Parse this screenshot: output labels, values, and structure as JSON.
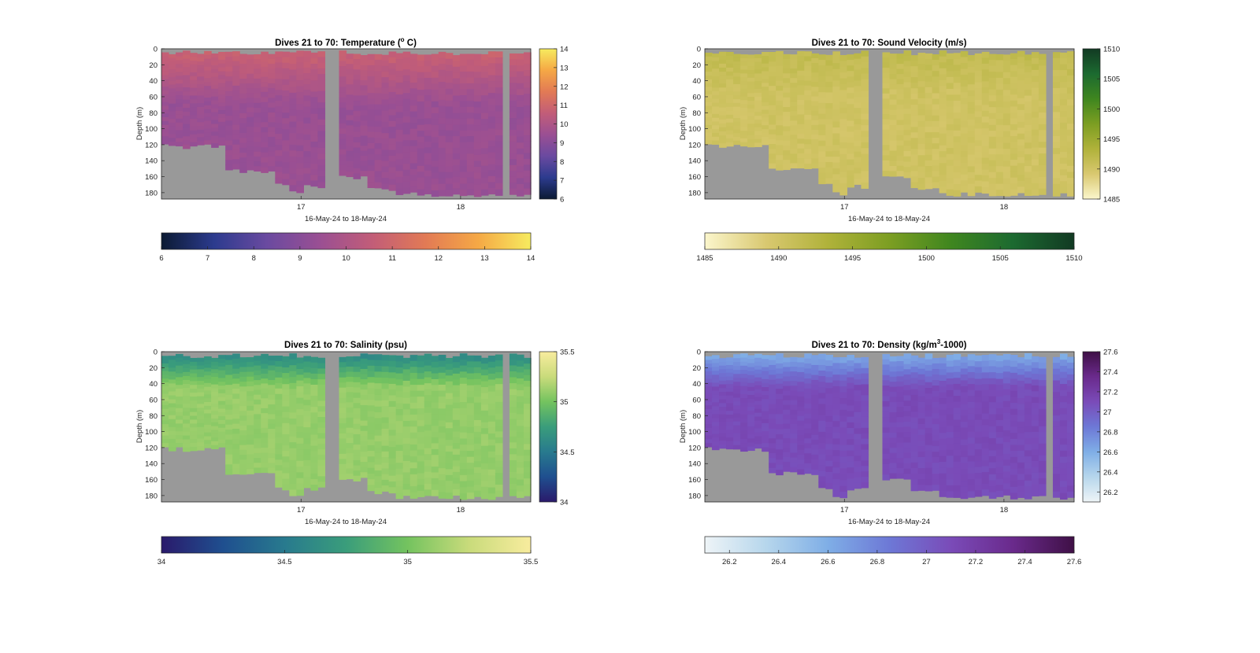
{
  "chart_data": [
    {
      "type": "heatmap",
      "title_main": "Dives 21 to 70: Temperature (",
      "title_sup": "o",
      "title_tail": " C)",
      "xlabel": "16-May-24 to 18-May-24",
      "ylabel": "Depth (m)",
      "x_ticks": [
        "17",
        "18"
      ],
      "y_ticks": [
        "0",
        "20",
        "40",
        "60",
        "80",
        "100",
        "120",
        "140",
        "160",
        "180"
      ],
      "ylim": [
        0,
        188
      ],
      "clim": [
        6,
        14
      ],
      "colorbar_ticks": [
        "6",
        "7",
        "8",
        "9",
        "10",
        "11",
        "12",
        "13",
        "14"
      ],
      "hbar_ticks": [
        "6",
        "7",
        "8",
        "9",
        "10",
        "11",
        "12",
        "13",
        "14"
      ],
      "colormap": [
        "#0b1a33",
        "#2c3b8e",
        "#6a4aa0",
        "#9a4f93",
        "#c25d78",
        "#e27a55",
        "#f5a845",
        "#f6eb5f"
      ],
      "no_data_color": "#999999",
      "surface_value": 10.9,
      "deep_value": 9.4,
      "layer_depth": 70
    },
    {
      "type": "heatmap",
      "title_main": "Dives 21 to 70: Sound Velocity (m/s)",
      "title_sup": "",
      "title_tail": "",
      "xlabel": "16-May-24 to 18-May-24",
      "ylabel": "Depth (m)",
      "x_ticks": [
        "17",
        "18"
      ],
      "y_ticks": [
        "0",
        "20",
        "40",
        "60",
        "80",
        "100",
        "120",
        "140",
        "160",
        "180"
      ],
      "ylim": [
        0,
        188
      ],
      "clim": [
        1485,
        1510
      ],
      "colorbar_ticks": [
        "1485",
        "1490",
        "1495",
        "1500",
        "1505",
        "1510"
      ],
      "hbar_ticks": [
        "1485",
        "1490",
        "1495",
        "1500",
        "1505",
        "1510"
      ],
      "colormap": [
        "#fbf6cc",
        "#d9c870",
        "#b0b23a",
        "#7c9e22",
        "#3f861f",
        "#1c6a30",
        "#123a23"
      ],
      "no_data_color": "#999999",
      "surface_value": 1491.8,
      "deep_value": 1490.2,
      "layer_depth": 60
    },
    {
      "type": "heatmap",
      "title_main": "Dives 21 to 70: Salinity (psu)",
      "title_sup": "",
      "title_tail": "",
      "xlabel": "16-May-24 to 18-May-24",
      "ylabel": "Depth (m)",
      "x_ticks": [
        "17",
        "18"
      ],
      "y_ticks": [
        "0",
        "20",
        "40",
        "60",
        "80",
        "100",
        "120",
        "140",
        "160",
        "180"
      ],
      "ylim": [
        0,
        188
      ],
      "clim": [
        34,
        35.5
      ],
      "colorbar_ticks": [
        "34",
        "34.5",
        "35",
        "35.5"
      ],
      "hbar_ticks": [
        "34",
        "34.5",
        "35",
        "35.5"
      ],
      "colormap": [
        "#2a1a6b",
        "#1f4f8f",
        "#287a8e",
        "#3a9d7b",
        "#74c35f",
        "#c9db7b",
        "#f8ec9e"
      ],
      "no_data_color": "#999999",
      "surface_value": 34.55,
      "deep_value": 35.1,
      "layer_depth": 45
    },
    {
      "type": "heatmap",
      "title_main": "Dives 21 to 70: Density (kg/m",
      "title_sup": "3",
      "title_tail": "-1000)",
      "xlabel": "16-May-24 to 18-May-24",
      "ylabel": "Depth (m)",
      "x_ticks": [
        "17",
        "18"
      ],
      "y_ticks": [
        "0",
        "20",
        "40",
        "60",
        "80",
        "100",
        "120",
        "140",
        "160",
        "180"
      ],
      "ylim": [
        0,
        188
      ],
      "clim": [
        26.1,
        27.6
      ],
      "colorbar_ticks": [
        "27.6",
        "27.4",
        "27.2",
        "27",
        "26.8",
        "26.6",
        "26.4",
        "26.2"
      ],
      "hbar_ticks": [
        "26.2",
        "26.4",
        "26.6",
        "26.8",
        "27",
        "27.2",
        "27.4",
        "27.6"
      ],
      "colormap": [
        "#eef4f7",
        "#b6d6ec",
        "#7faee6",
        "#6d78d6",
        "#7a4bb8",
        "#6a2a8c",
        "#3f1046"
      ],
      "no_data_color": "#999999",
      "surface_value": 26.55,
      "deep_value": 27.1,
      "layer_depth": 45
    }
  ]
}
